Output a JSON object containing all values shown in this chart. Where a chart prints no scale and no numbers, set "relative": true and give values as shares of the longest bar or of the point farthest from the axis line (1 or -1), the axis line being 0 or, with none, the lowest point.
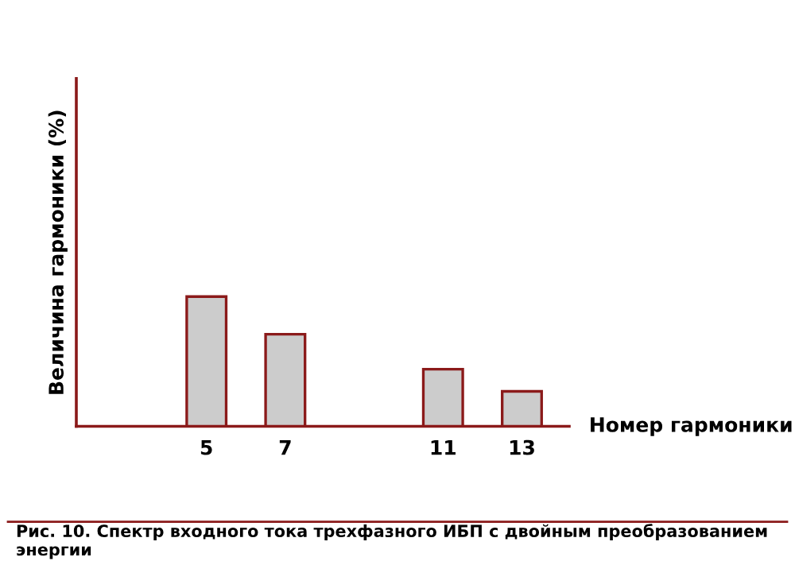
{
  "chart_data": {
    "type": "bar",
    "xlabel": "Номер гармоники",
    "ylabel": "Величина гармоники (%)",
    "x": [
      5,
      7,
      11,
      13
    ],
    "values": [
      1,
      0.71,
      0.44,
      0.27
    ],
    "relative": true,
    "color": "#cccccc",
    "xlim": [
      1.7,
      14.2
    ],
    "xticks": [
      5,
      7,
      11,
      13
    ],
    "grid": false,
    "annotations": [
      "Рис. 10. Спектр входного тока трехфазного ИБП с двойным преобразованием энергии"
    ]
  }
}
